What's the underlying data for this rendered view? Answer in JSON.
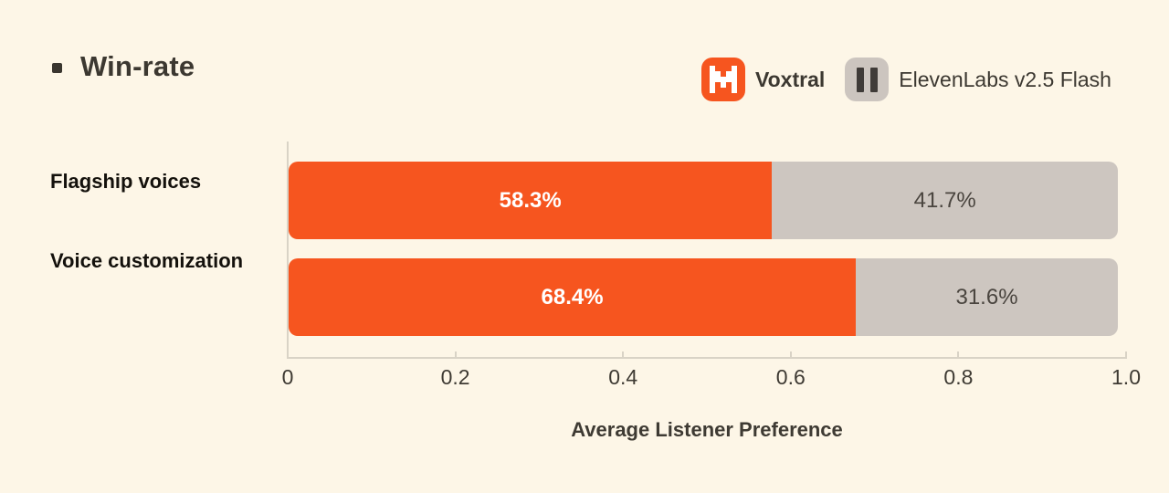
{
  "title": {
    "text": "Win-rate"
  },
  "legend": {
    "items": [
      {
        "label": "Voxtral",
        "icon": "voxtral-logo",
        "swatch_color": "#F6551F"
      },
      {
        "label": "ElevenLabs v2.5 Flash",
        "icon": "elevenlabs-logo",
        "swatch_color": "#CCC5BF"
      }
    ]
  },
  "chart_data": {
    "type": "bar",
    "orientation": "horizontal",
    "stacked": true,
    "title": "Win-rate",
    "categories": [
      "Flagship voices",
      "Voice customization"
    ],
    "series": [
      {
        "name": "Voxtral",
        "color": "#F6551F",
        "values": [
          0.583,
          0.684
        ],
        "labels": [
          "58.3%",
          "68.4%"
        ]
      },
      {
        "name": "ElevenLabs v2.5 Flash",
        "color": "#CDC6C0",
        "values": [
          0.417,
          0.316
        ],
        "labels": [
          "41.7%",
          "31.6%"
        ]
      }
    ],
    "xlabel": "Average Listener Preference",
    "xlim": [
      0,
      1.0
    ],
    "x_ticks": [
      {
        "value": 0,
        "label": "0"
      },
      {
        "value": 0.2,
        "label": "0.2"
      },
      {
        "value": 0.4,
        "label": "0.4"
      },
      {
        "value": 0.6,
        "label": "0.6"
      },
      {
        "value": 0.8,
        "label": "0.8"
      },
      {
        "value": 1.0,
        "label": "1.0"
      }
    ],
    "legend_position": "top-right",
    "grid": false
  },
  "colors": {
    "background": "#FDF6E7",
    "voxtral_orange": "#F6551F",
    "elevenlabs_gray": "#CDC6C0",
    "dark_text": "#3C3831",
    "category_text": "#14110C",
    "gray_segment_text": "#4A453F",
    "axis_line": "#D9D3C6"
  }
}
